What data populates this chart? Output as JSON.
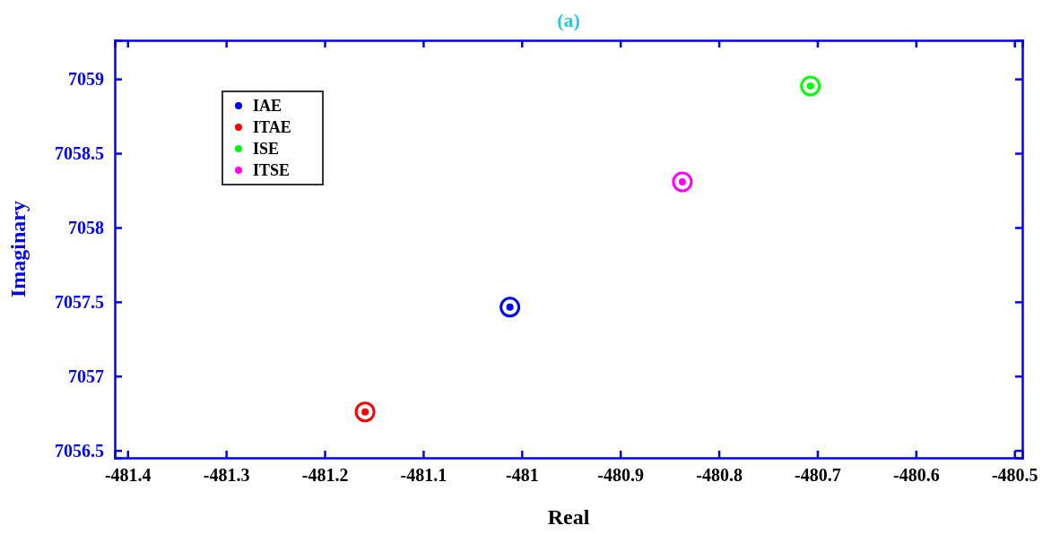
{
  "chart_data": {
    "type": "scatter",
    "title": "(a)",
    "xlabel": "Real",
    "ylabel": "Imaginary",
    "xlim": [
      -481.413,
      -480.492
    ],
    "ylim": [
      7056.45,
      7059.26
    ],
    "xticks": [
      -481.4,
      -481.3,
      -481.2,
      -481.1,
      -481,
      -480.9,
      -480.8,
      -480.7,
      -480.6,
      -480.5
    ],
    "yticks": [
      7056.5,
      7057,
      7057.5,
      7058,
      7058.5,
      7059
    ],
    "grid": false,
    "legend": "top left",
    "marker": "circle",
    "series": [
      {
        "name": "IAE",
        "color": "#0000ff",
        "x": [
          -481.012
        ],
        "values": [
          7057.464
        ]
      },
      {
        "name": "ITAE",
        "color": "#ff0000",
        "x": [
          -481.159
        ],
        "values": [
          7056.759
        ]
      },
      {
        "name": "ISE",
        "color": "#00ff00",
        "x": [
          -480.707
        ],
        "values": [
          7058.952
        ]
      },
      {
        "name": "ITSE",
        "color": "#ff00ff",
        "x": [
          -480.837
        ],
        "values": [
          7058.307
        ]
      }
    ]
  }
}
